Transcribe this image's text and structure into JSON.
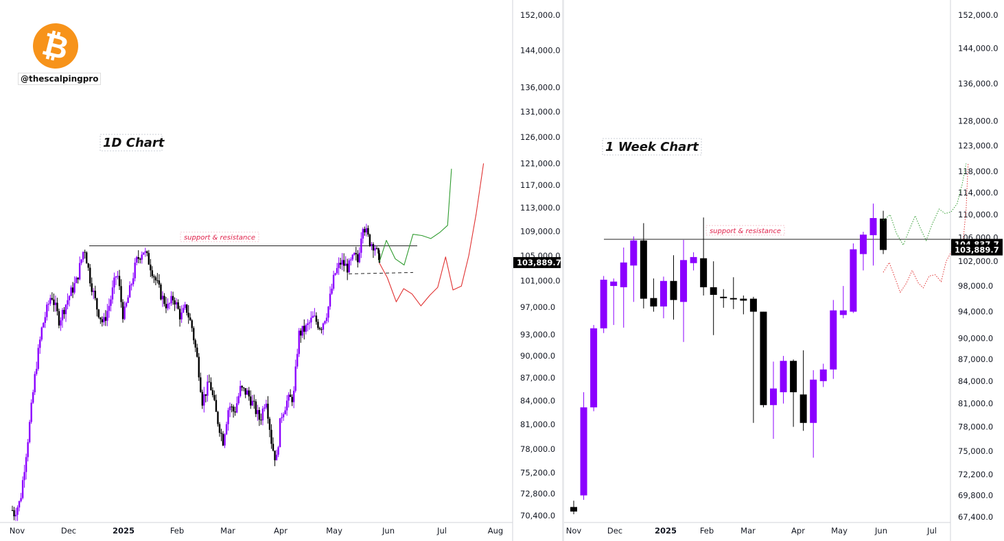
{
  "branding": {
    "coin_icon": "bitcoin-icon",
    "handle": "@thescalpingpro",
    "coin_color": "#f7931a"
  },
  "colors": {
    "bull": "#8b00ff",
    "bear": "#000000",
    "bull_path": "#2e9b2e",
    "bear_path": "#e03030",
    "label_red": "#e0204a",
    "price_tag": "#000000"
  },
  "chart_data": [
    {
      "type": "candlestick",
      "title": "1D Chart",
      "x_ticks": [
        "Nov",
        "Dec",
        "2025",
        "Feb",
        "Mar",
        "Apr",
        "May",
        "Jun",
        "Jul",
        "Aug"
      ],
      "y_ticks": [
        70400,
        72800,
        75200,
        78000,
        81000,
        84000,
        87000,
        90000,
        93000,
        97000,
        101000,
        105000,
        109000,
        113000,
        117000,
        121000,
        126000,
        131000,
        136000,
        144000,
        152000
      ],
      "ylim": [
        70400,
        152000
      ],
      "y_scale": "log",
      "last_price": 103889.7,
      "last_price_label": "103,889.7",
      "support_resistance": {
        "label": "support & resistance",
        "price": 106600
      },
      "dashed_support": 102100,
      "close_path": [
        [
          0.0,
          71000
        ],
        [
          0.3,
          70600
        ],
        [
          1.6,
          72000
        ],
        [
          3.4,
          80500
        ],
        [
          4.7,
          88000
        ],
        [
          6.0,
          94000
        ],
        [
          7.9,
          99000
        ],
        [
          9.5,
          95000
        ],
        [
          11.4,
          98500
        ],
        [
          13.0,
          101000
        ],
        [
          14.6,
          106500
        ],
        [
          15.7,
          101500
        ],
        [
          17.1,
          97000
        ],
        [
          18.4,
          94500
        ],
        [
          19.7,
          97500
        ],
        [
          21.2,
          102500
        ],
        [
          22.5,
          95500
        ],
        [
          23.8,
          99500
        ],
        [
          25.1,
          104000
        ],
        [
          26.5,
          106000
        ],
        [
          27.7,
          104000
        ],
        [
          29.1,
          101000
        ],
        [
          30.3,
          98500
        ],
        [
          31.5,
          97000
        ],
        [
          32.7,
          98500
        ],
        [
          34.1,
          95500
        ],
        [
          35.2,
          97000
        ],
        [
          36.4,
          94000
        ],
        [
          37.6,
          89000
        ],
        [
          38.5,
          84000
        ],
        [
          40.0,
          86500
        ],
        [
          41.4,
          82000
        ],
        [
          42.7,
          79000
        ],
        [
          43.9,
          83500
        ],
        [
          45.0,
          82500
        ],
        [
          46.2,
          85500
        ],
        [
          47.6,
          85000
        ],
        [
          48.8,
          83500
        ],
        [
          50.2,
          81500
        ],
        [
          51.4,
          84500
        ],
        [
          52.6,
          78500
        ],
        [
          53.5,
          76500
        ],
        [
          54.4,
          82000
        ],
        [
          55.7,
          84000
        ],
        [
          57.0,
          84500
        ],
        [
          58.0,
          93000
        ],
        [
          59.6,
          94000
        ],
        [
          61.0,
          95500
        ],
        [
          62.5,
          94000
        ],
        [
          63.9,
          96500
        ],
        [
          65.3,
          102000
        ],
        [
          66.6,
          104000
        ],
        [
          68.0,
          103000
        ],
        [
          69.4,
          105000
        ],
        [
          70.0,
          104000
        ],
        [
          71.0,
          110500
        ],
        [
          72.3,
          107500
        ],
        [
          73.5,
          106500
        ],
        [
          74.4,
          103889.7
        ]
      ],
      "projections": [
        {
          "name": "bullish",
          "color": "#2e9b2e",
          "points": [
            [
              74.4,
              104000
            ],
            [
              75.8,
              107500
            ],
            [
              77.6,
              104500
            ],
            [
              79.4,
              103500
            ],
            [
              81.2,
              108500
            ],
            [
              83.0,
              108300
            ],
            [
              84.8,
              107800
            ],
            [
              86.6,
              108800
            ],
            [
              88.2,
              110000
            ],
            [
              89.0,
              120000
            ]
          ]
        },
        {
          "name": "bearish",
          "color": "#e03030",
          "points": [
            [
              74.4,
              103800
            ],
            [
              76.0,
              101500
            ],
            [
              77.8,
              97800
            ],
            [
              79.3,
              99800
            ],
            [
              81.0,
              99000
            ],
            [
              82.8,
              97200
            ],
            [
              84.6,
              98800
            ],
            [
              86.2,
              100000
            ],
            [
              87.8,
              104800
            ],
            [
              89.3,
              99600
            ],
            [
              91.0,
              100200
            ],
            [
              92.5,
              105000
            ],
            [
              94.0,
              112000
            ],
            [
              95.5,
              121000
            ]
          ]
        }
      ]
    },
    {
      "type": "candlestick",
      "title": "1 Week Chart",
      "x_ticks": [
        "Nov",
        "Dec",
        "2025",
        "Feb",
        "Mar",
        "Apr",
        "May",
        "Jun",
        "Jul"
      ],
      "y_ticks": [
        67400,
        69800,
        72200,
        75000,
        78000,
        81000,
        84000,
        87000,
        90000,
        94000,
        98000,
        102000,
        106000,
        110000,
        114000,
        118000,
        123000,
        128000,
        136000,
        144000,
        152000
      ],
      "ylim": [
        67400,
        152000
      ],
      "y_scale": "log",
      "last_price": 103889.7,
      "last_price_label": "103,889.7",
      "level_price": 104837.7,
      "level_label": "104,837.7",
      "support_resistance": {
        "label": "support & resistance",
        "price": 105700
      },
      "candles": [
        {
          "o": 68500,
          "h": 69200,
          "l": 67700,
          "c": 68000
        },
        {
          "o": 69800,
          "h": 82500,
          "l": 69300,
          "c": 80500
        },
        {
          "o": 80500,
          "h": 92000,
          "l": 80000,
          "c": 91500
        },
        {
          "o": 91500,
          "h": 99600,
          "l": 90800,
          "c": 99000
        },
        {
          "o": 98000,
          "h": 99200,
          "l": 92000,
          "c": 98700
        },
        {
          "o": 97800,
          "h": 104300,
          "l": 91600,
          "c": 101800
        },
        {
          "o": 101300,
          "h": 106200,
          "l": 95500,
          "c": 105500
        },
        {
          "o": 105500,
          "h": 108500,
          "l": 94500,
          "c": 96000
        },
        {
          "o": 96100,
          "h": 99200,
          "l": 94000,
          "c": 94800
        },
        {
          "o": 94800,
          "h": 99500,
          "l": 93000,
          "c": 98800
        },
        {
          "o": 98800,
          "h": 103000,
          "l": 92800,
          "c": 95800
        },
        {
          "o": 95500,
          "h": 105600,
          "l": 89500,
          "c": 102200
        },
        {
          "o": 101700,
          "h": 103500,
          "l": 100500,
          "c": 102700
        },
        {
          "o": 102500,
          "h": 109500,
          "l": 96500,
          "c": 97800
        },
        {
          "o": 97800,
          "h": 102000,
          "l": 90500,
          "c": 96600
        },
        {
          "o": 96300,
          "h": 97500,
          "l": 94600,
          "c": 96100
        },
        {
          "o": 96100,
          "h": 99400,
          "l": 94400,
          "c": 95900
        },
        {
          "o": 96000,
          "h": 96500,
          "l": 93600,
          "c": 95700
        },
        {
          "o": 96000,
          "h": 96300,
          "l": 78500,
          "c": 94000
        },
        {
          "o": 94000,
          "h": 94000,
          "l": 80500,
          "c": 80800
        },
        {
          "o": 80800,
          "h": 86700,
          "l": 76500,
          "c": 83000
        },
        {
          "o": 82500,
          "h": 87500,
          "l": 81000,
          "c": 86800
        },
        {
          "o": 86800,
          "h": 87000,
          "l": 78000,
          "c": 82500
        },
        {
          "o": 82200,
          "h": 88300,
          "l": 77500,
          "c": 78500
        },
        {
          "o": 78500,
          "h": 85500,
          "l": 74200,
          "c": 84200
        },
        {
          "o": 84000,
          "h": 86400,
          "l": 83200,
          "c": 85600
        },
        {
          "o": 85600,
          "h": 95800,
          "l": 84300,
          "c": 94200
        },
        {
          "o": 93500,
          "h": 98000,
          "l": 93000,
          "c": 94200
        },
        {
          "o": 94000,
          "h": 105000,
          "l": 93800,
          "c": 104000
        },
        {
          "o": 103200,
          "h": 107000,
          "l": 100500,
          "c": 106500
        },
        {
          "o": 106400,
          "h": 112000,
          "l": 101300,
          "c": 109400
        },
        {
          "o": 109300,
          "h": 110700,
          "l": 103200,
          "c": 103889.7
        }
      ],
      "projections": [
        {
          "name": "bullish",
          "color": "#2e9b2e",
          "points": [
            [
              31.0,
              109000
            ],
            [
              31.7,
              110000
            ],
            [
              32.3,
              106800
            ],
            [
              33.0,
              104700
            ],
            [
              33.6,
              107300
            ],
            [
              34.2,
              109800
            ],
            [
              34.8,
              107300
            ],
            [
              35.3,
              105500
            ],
            [
              35.9,
              108300
            ],
            [
              36.6,
              111000
            ],
            [
              37.2,
              110200
            ],
            [
              37.8,
              110500
            ],
            [
              38.4,
              112000
            ],
            [
              38.9,
              115500
            ],
            [
              39.3,
              119500
            ]
          ]
        },
        {
          "name": "bearish",
          "color": "#e03030",
          "points": [
            [
              31.0,
              100200
            ],
            [
              31.6,
              101800
            ],
            [
              32.2,
              99200
            ],
            [
              32.7,
              97000
            ],
            [
              33.3,
              98400
            ],
            [
              33.9,
              100500
            ],
            [
              34.5,
              98500
            ],
            [
              35.0,
              97700
            ],
            [
              35.6,
              99600
            ],
            [
              36.2,
              99800
            ],
            [
              36.8,
              98700
            ],
            [
              37.3,
              102000
            ],
            [
              37.9,
              103800
            ],
            [
              38.5,
              104100
            ],
            [
              39.0,
              105500
            ],
            [
              39.3,
              111000
            ],
            [
              39.5,
              119500
            ]
          ]
        }
      ]
    }
  ]
}
